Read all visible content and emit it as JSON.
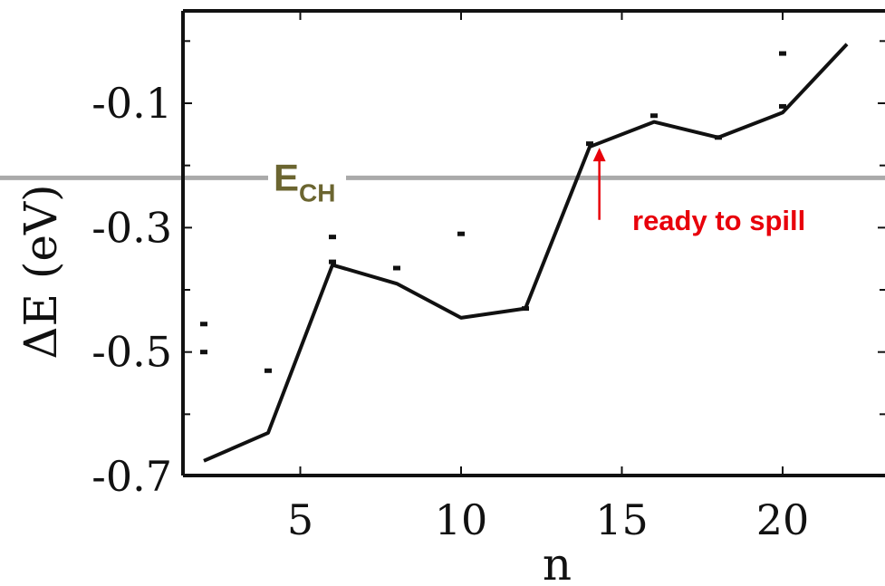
{
  "chart_data": {
    "type": "line",
    "xlabel": "n",
    "ylabel": "ΔE (eV)",
    "xlim": [
      2,
      22
    ],
    "ylim": [
      -0.7,
      0.0
    ],
    "xticks": [
      5,
      10,
      15,
      20
    ],
    "xtick_labels": [
      "5",
      "10",
      "15",
      "20"
    ],
    "yticks": [
      -0.7,
      -0.5,
      -0.3,
      -0.1
    ],
    "ytick_labels": [
      "-0.7",
      "-0.5",
      "-0.3",
      "-0.1"
    ],
    "grid": false,
    "series": [
      {
        "x": [
          2,
          4,
          6,
          8,
          10,
          12,
          14,
          16,
          18,
          20,
          22
        ],
        "y": [
          -0.675,
          -0.63,
          -0.36,
          -0.39,
          -0.445,
          -0.43,
          -0.17,
          -0.13,
          -0.155,
          -0.115,
          -0.005
        ]
      }
    ],
    "scatter_points": [
      {
        "x": 2,
        "y": -0.455
      },
      {
        "x": 2,
        "y": -0.5
      },
      {
        "x": 4,
        "y": -0.53
      },
      {
        "x": 6,
        "y": -0.315
      },
      {
        "x": 6,
        "y": -0.355
      },
      {
        "x": 8,
        "y": -0.365
      },
      {
        "x": 10,
        "y": -0.31
      },
      {
        "x": 12,
        "y": -0.43
      },
      {
        "x": 14,
        "y": -0.165
      },
      {
        "x": 16,
        "y": -0.12
      },
      {
        "x": 18,
        "y": -0.155
      },
      {
        "x": 20,
        "y": -0.02
      },
      {
        "x": 20,
        "y": -0.105
      }
    ],
    "reference_line": {
      "label_main": "E",
      "label_sub": "CH",
      "y": -0.22,
      "color": "#aaaaaa",
      "label_color": "#6b6530"
    },
    "annotation": {
      "text": "ready to spill",
      "x": 14.3,
      "y_start": -0.27,
      "y_end": -0.17,
      "color": "#e8000b"
    }
  }
}
